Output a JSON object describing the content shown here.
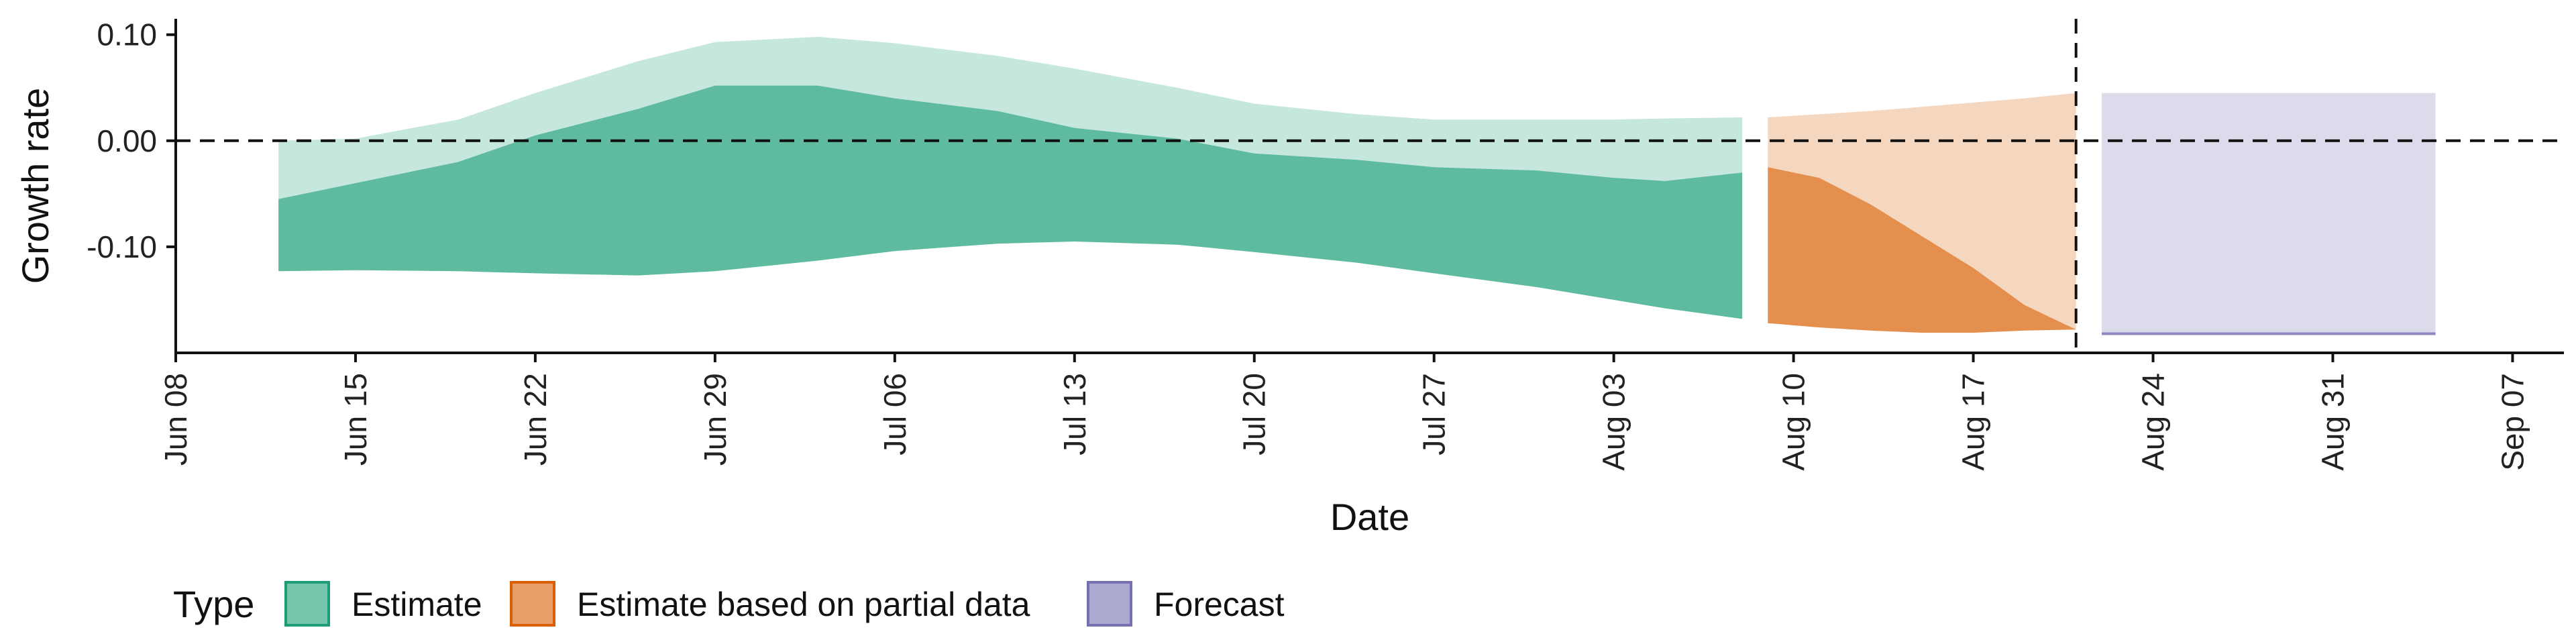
{
  "chart_data": {
    "type": "area",
    "xlabel": "Date",
    "ylabel": "Growth rate",
    "x_range": [
      "2020-06-08",
      "2020-09-09"
    ],
    "ylim": [
      -0.2,
      0.115
    ],
    "y_ticks": [
      0.1,
      0.0,
      -0.1
    ],
    "y_tick_labels": [
      "0.10",
      "0.00",
      "-0.10"
    ],
    "x_ticks": [
      "2020-06-08",
      "2020-06-15",
      "2020-06-22",
      "2020-06-29",
      "2020-07-06",
      "2020-07-13",
      "2020-07-20",
      "2020-07-27",
      "2020-08-03",
      "2020-08-10",
      "2020-08-17",
      "2020-08-24",
      "2020-08-31",
      "2020-09-07"
    ],
    "x_tick_labels": [
      "Jun 08",
      "Jun 15",
      "Jun 22",
      "Jun 29",
      "Jul 06",
      "Jul 13",
      "Jul 20",
      "Jul 27",
      "Aug 03",
      "Aug 10",
      "Aug 17",
      "Aug 24",
      "Aug 31",
      "Sep 07"
    ],
    "reference_lines": [
      {
        "axis": "y",
        "value": 0.0,
        "style": "dashed"
      },
      {
        "axis": "x",
        "value": "2020-08-21",
        "style": "dashed"
      }
    ],
    "legend": {
      "title": "Type",
      "position": "bottom"
    },
    "series": [
      {
        "name": "Estimate",
        "color": "#1b9e77",
        "x": [
          "2020-06-12",
          "2020-06-15",
          "2020-06-19",
          "2020-06-22",
          "2020-06-26",
          "2020-06-29",
          "2020-07-03",
          "2020-07-06",
          "2020-07-10",
          "2020-07-13",
          "2020-07-17",
          "2020-07-20",
          "2020-07-24",
          "2020-07-27",
          "2020-07-31",
          "2020-08-03",
          "2020-08-05",
          "2020-08-08"
        ],
        "outer": {
          "upper": [
            0.0,
            0.002,
            0.02,
            0.045,
            0.075,
            0.093,
            0.098,
            0.092,
            0.08,
            0.068,
            0.05,
            0.035,
            0.025,
            0.02,
            0.02,
            0.02,
            0.021,
            0.022
          ],
          "lower": [
            -0.123,
            -0.122,
            -0.123,
            -0.125,
            -0.127,
            -0.123,
            -0.113,
            -0.104,
            -0.097,
            -0.095,
            -0.098,
            -0.105,
            -0.115,
            -0.125,
            -0.138,
            -0.15,
            -0.158,
            -0.168
          ]
        },
        "inner": {
          "upper": [
            -0.055,
            -0.04,
            -0.02,
            0.005,
            0.03,
            0.052,
            0.052,
            0.04,
            0.028,
            0.012,
            0.002,
            -0.012,
            -0.018,
            -0.025,
            -0.028,
            -0.035,
            -0.038,
            -0.03
          ],
          "lower": [
            -0.123,
            -0.122,
            -0.123,
            -0.125,
            -0.127,
            -0.123,
            -0.113,
            -0.104,
            -0.097,
            -0.095,
            -0.098,
            -0.105,
            -0.115,
            -0.125,
            -0.138,
            -0.15,
            -0.158,
            -0.168
          ]
        }
      },
      {
        "name": "Estimate based on partial data",
        "color": "#d95f02",
        "x": [
          "2020-08-09",
          "2020-08-11",
          "2020-08-13",
          "2020-08-15",
          "2020-08-17",
          "2020-08-19",
          "2020-08-21"
        ],
        "outer": {
          "upper": [
            0.022,
            0.025,
            0.028,
            0.032,
            0.036,
            0.04,
            0.045
          ],
          "lower": [
            -0.172,
            -0.176,
            -0.179,
            -0.181,
            -0.181,
            -0.179,
            -0.178
          ]
        },
        "inner": {
          "upper": [
            -0.025,
            -0.035,
            -0.06,
            -0.09,
            -0.12,
            -0.155,
            -0.178
          ],
          "lower": [
            -0.172,
            -0.176,
            -0.179,
            -0.181,
            -0.181,
            -0.179,
            -0.178
          ]
        }
      },
      {
        "name": "Forecast",
        "color": "#7570b3",
        "x": [
          "2020-08-22",
          "2020-09-04"
        ],
        "outer": {
          "upper": [
            0.045,
            0.045
          ],
          "lower": [
            -0.182,
            -0.182
          ]
        }
      }
    ]
  }
}
